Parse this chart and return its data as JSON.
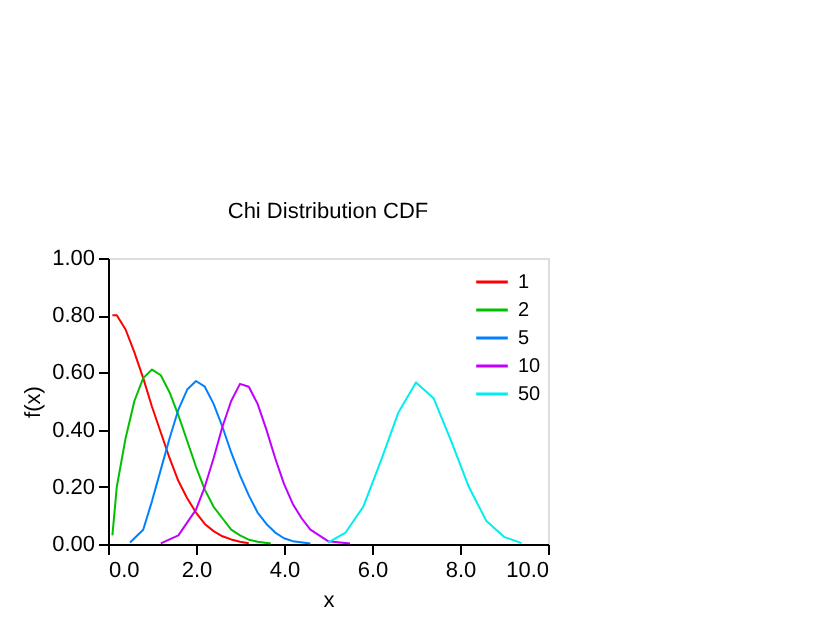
{
  "chart_data": {
    "type": "line",
    "title": "Chi Distribution CDF",
    "xlabel": "x",
    "ylabel": "f(x)",
    "xlim": [
      0,
      10
    ],
    "ylim": [
      0,
      1
    ],
    "xticks": [
      {
        "value": 0,
        "label": "0.0"
      },
      {
        "value": 2,
        "label": "2.0"
      },
      {
        "value": 4,
        "label": "4.0"
      },
      {
        "value": 6,
        "label": "6.0"
      },
      {
        "value": 8,
        "label": "8.0"
      },
      {
        "value": 10,
        "label": "10.0"
      }
    ],
    "yticks": [
      {
        "value": 0,
        "label": "0.00"
      },
      {
        "value": 0.2,
        "label": "0.20"
      },
      {
        "value": 0.4,
        "label": "0.40"
      },
      {
        "value": 0.6,
        "label": "0.60"
      },
      {
        "value": 0.8,
        "label": "0.80"
      },
      {
        "value": 1,
        "label": "1.00"
      }
    ],
    "legend": "top right",
    "grid": false,
    "marker": "none",
    "line_style": "solid",
    "series": [
      {
        "name": "1",
        "color": "#ff0000",
        "x": [
          0.1,
          0.2,
          0.4,
          0.6,
          0.8,
          1.0,
          1.2,
          1.4,
          1.6,
          1.8,
          2.0,
          2.2,
          2.4,
          2.6,
          2.8,
          3.0,
          3.2
        ],
        "values": [
          0.8,
          0.8,
          0.75,
          0.67,
          0.58,
          0.48,
          0.39,
          0.3,
          0.22,
          0.16,
          0.11,
          0.07,
          0.045,
          0.027,
          0.016,
          0.008,
          0.003
        ]
      },
      {
        "name": "2",
        "color": "#00c000",
        "x": [
          0.1,
          0.2,
          0.4,
          0.6,
          0.8,
          1.0,
          1.2,
          1.4,
          1.6,
          1.8,
          2.0,
          2.2,
          2.4,
          2.6,
          2.8,
          3.0,
          3.2,
          3.4,
          3.7
        ],
        "values": [
          0.03,
          0.2,
          0.37,
          0.5,
          0.58,
          0.61,
          0.59,
          0.53,
          0.45,
          0.36,
          0.27,
          0.19,
          0.13,
          0.09,
          0.05,
          0.03,
          0.015,
          0.008,
          0.002
        ]
      },
      {
        "name": "5",
        "color": "#0080ff",
        "x": [
          0.5,
          0.8,
          1.0,
          1.2,
          1.4,
          1.6,
          1.8,
          2.0,
          2.2,
          2.4,
          2.6,
          2.8,
          3.0,
          3.2,
          3.4,
          3.6,
          3.8,
          4.0,
          4.2,
          4.6
        ],
        "values": [
          0.005,
          0.05,
          0.15,
          0.26,
          0.37,
          0.47,
          0.54,
          0.57,
          0.55,
          0.49,
          0.41,
          0.32,
          0.24,
          0.17,
          0.11,
          0.07,
          0.04,
          0.02,
          0.01,
          0.002
        ]
      },
      {
        "name": "10",
        "color": "#c000ff",
        "x": [
          1.2,
          1.6,
          2.0,
          2.2,
          2.4,
          2.6,
          2.8,
          3.0,
          3.2,
          3.4,
          3.6,
          3.8,
          4.0,
          4.2,
          4.4,
          4.6,
          4.8,
          5.0,
          5.5
        ],
        "values": [
          0.002,
          0.03,
          0.12,
          0.2,
          0.3,
          0.41,
          0.5,
          0.56,
          0.55,
          0.49,
          0.4,
          0.3,
          0.21,
          0.14,
          0.09,
          0.05,
          0.03,
          0.01,
          0.002
        ]
      },
      {
        "name": "50",
        "color": "#00eeee",
        "x": [
          5.0,
          5.4,
          5.8,
          6.2,
          6.6,
          7.0,
          7.4,
          7.8,
          8.2,
          8.6,
          9.0,
          9.4
        ],
        "values": [
          0.005,
          0.04,
          0.13,
          0.29,
          0.46,
          0.565,
          0.51,
          0.36,
          0.2,
          0.08,
          0.025,
          0.003
        ]
      }
    ]
  }
}
